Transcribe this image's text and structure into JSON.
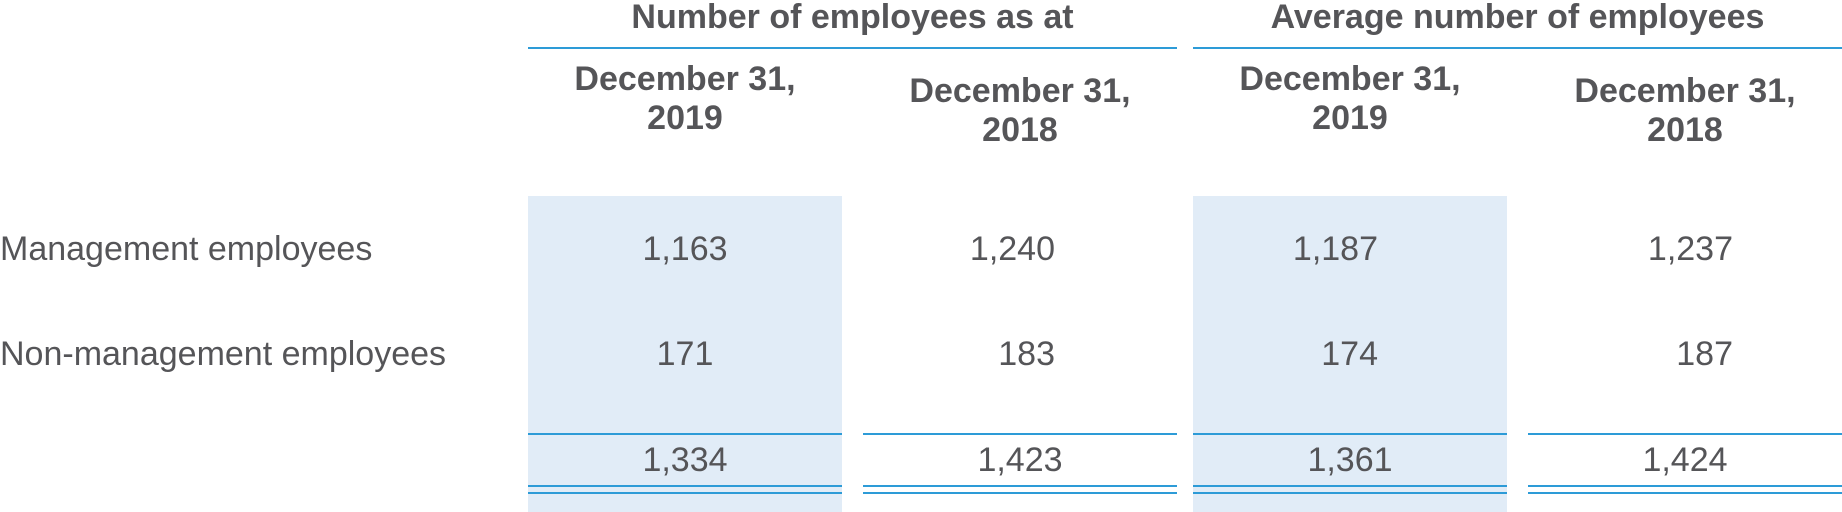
{
  "table": {
    "groups": [
      {
        "label": "Number of employees as at"
      },
      {
        "label": "Average number of employees"
      }
    ],
    "columns": [
      {
        "line1": "December 31,",
        "line2": "2019"
      },
      {
        "line1": "December 31,",
        "line2": "2018"
      },
      {
        "line1": "December 31,",
        "line2": "2019"
      },
      {
        "line1": "December 31,",
        "line2": "2018"
      }
    ],
    "rows": [
      {
        "label": "Management employees",
        "values": [
          "1,163",
          "1,240",
          "1,187",
          "1,237"
        ]
      },
      {
        "label": "Non-management employees",
        "values": [
          "171",
          "183",
          "174",
          "187"
        ]
      }
    ],
    "totals": [
      "1,334",
      "1,423",
      "1,361",
      "1,424"
    ]
  },
  "colors": {
    "accent_rule": "#2d9bd7",
    "shaded_column": "#e1ecf7",
    "text": "#555558"
  }
}
